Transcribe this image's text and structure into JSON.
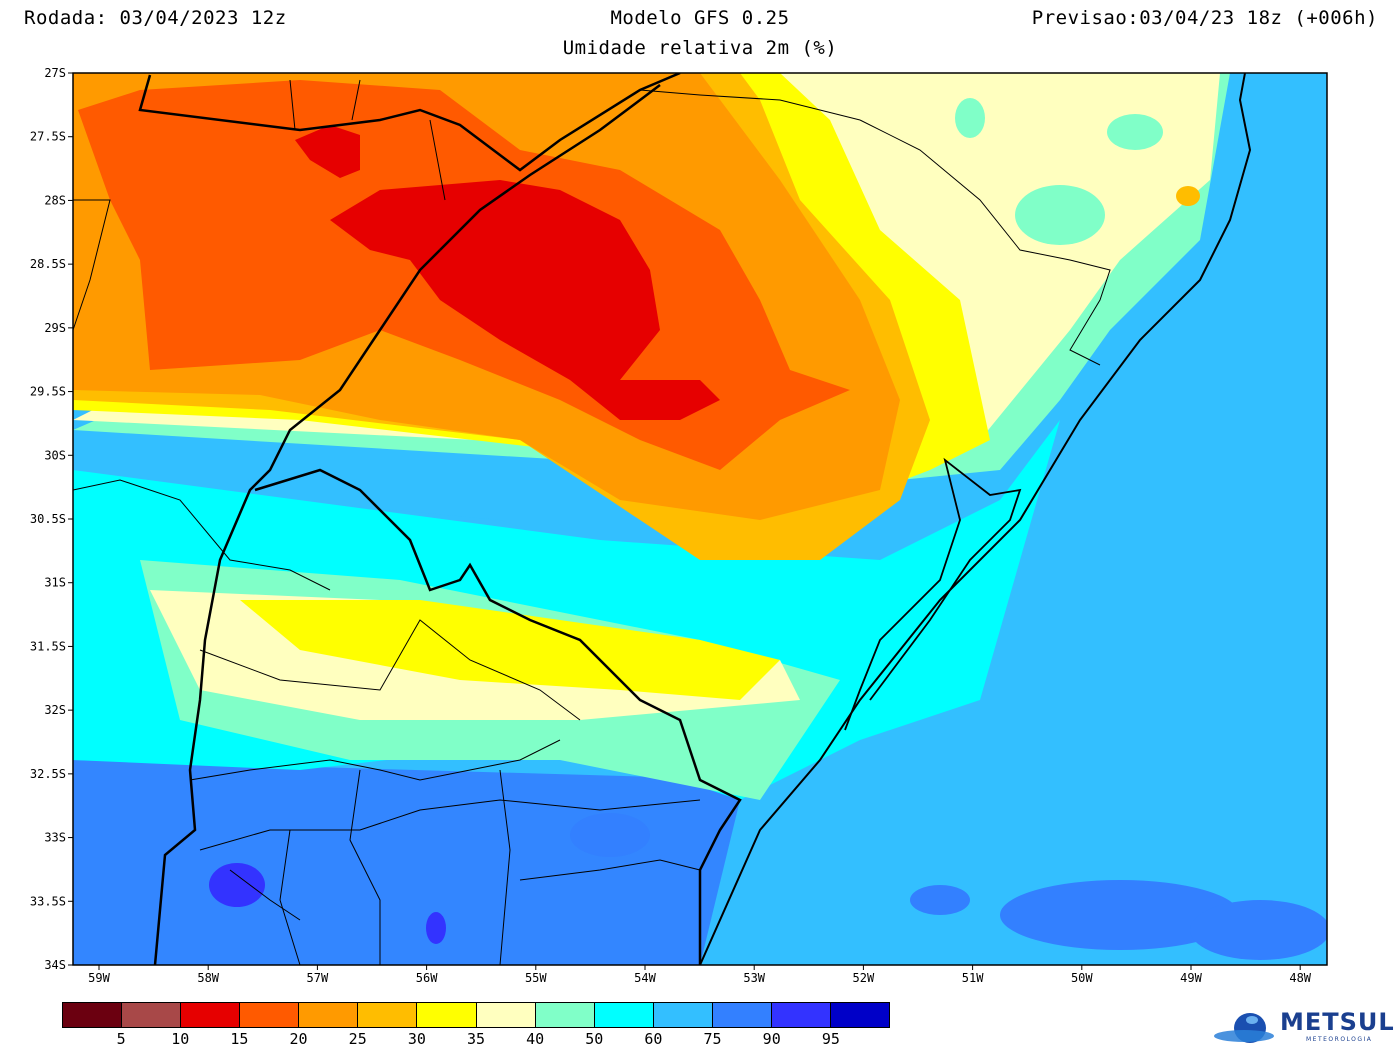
{
  "header": {
    "run": "Rodada: 03/04/2023 12z",
    "model": "Modelo GFS 0.25",
    "forecast": "Previsao:03/04/23 18z (+006h)",
    "variable": "Umidade relativa 2m (%)"
  },
  "map": {
    "lat_ticks": [
      "27S",
      "27.5S",
      "28S",
      "28.5S",
      "29S",
      "29.5S",
      "30S",
      "30.5S",
      "31S",
      "31.5S",
      "32S",
      "32.5S",
      "33S",
      "33.5S",
      "34S"
    ],
    "lon_ticks": [
      "59W",
      "58W",
      "57W",
      "56W",
      "55W",
      "54W",
      "53W",
      "52W",
      "51W",
      "50W",
      "49W",
      "48W"
    ]
  },
  "legend": {
    "colors": [
      "#6b0010",
      "#a84848",
      "#e60000",
      "#ff5a00",
      "#ff9a00",
      "#ffbd00",
      "#ffff00",
      "#ffffbf",
      "#80ffc8",
      "#00ffff",
      "#33bfff",
      "#3380ff",
      "#3333ff",
      "#0000c8"
    ],
    "labels": [
      "5",
      "10",
      "15",
      "20",
      "25",
      "30",
      "35",
      "40",
      "50",
      "60",
      "75",
      "90",
      "95"
    ]
  },
  "logo": {
    "text": "METSUL",
    "sub": "METEOROLOGIA"
  }
}
